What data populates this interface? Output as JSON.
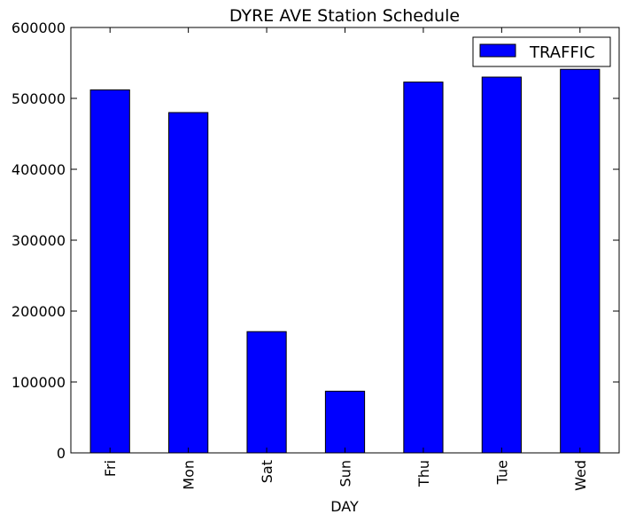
{
  "chart_data": {
    "type": "bar",
    "title": "DYRE AVE Station Schedule",
    "xlabel": "DAY",
    "ylabel": "",
    "categories": [
      "Fri",
      "Mon",
      "Sat",
      "Sun",
      "Thu",
      "Tue",
      "Wed"
    ],
    "series": [
      {
        "name": "TRAFFIC",
        "values": [
          512000,
          480000,
          171000,
          87000,
          523000,
          530000,
          541000
        ],
        "color": "#0000ff"
      }
    ],
    "ylim": [
      0,
      600000
    ],
    "yticks": [
      0,
      100000,
      200000,
      300000,
      400000,
      500000,
      600000
    ],
    "ytick_labels": [
      "0",
      "100000",
      "200000",
      "300000",
      "400000",
      "500000",
      "600000"
    ],
    "grid": false,
    "legend_position": "top-right"
  }
}
